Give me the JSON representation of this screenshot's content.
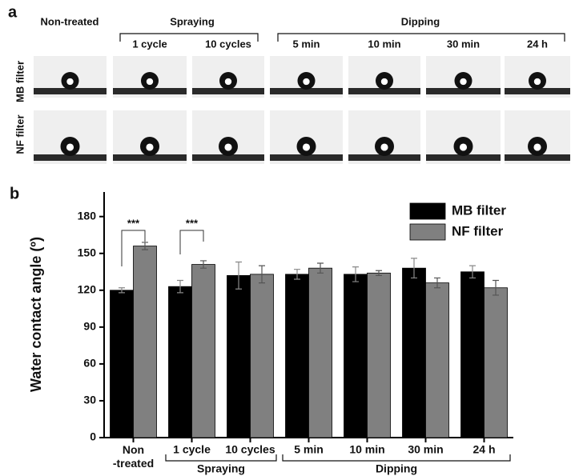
{
  "panel_a": {
    "label": "a",
    "first_column": "Non-treated",
    "groups": [
      "Spraying",
      "Dipping"
    ],
    "columns": [
      "1 cycle",
      "10 cycles",
      "5 min",
      "10 min",
      "30 min",
      "24 h"
    ],
    "rows": [
      "MB filter",
      "NF filter"
    ]
  },
  "chart_data": {
    "type": "bar",
    "panel_label": "b",
    "ylabel": "Water contact angle (º)",
    "categories": [
      "Non\n-treated",
      "1 cycle",
      "10 cycles",
      "5 min",
      "10 min",
      "30 min",
      "24 h"
    ],
    "groups": [
      "Spraying",
      "Dipping"
    ],
    "series": [
      {
        "name": "MB filter",
        "color": "#000000",
        "values": [
          120,
          123,
          132,
          133,
          133,
          138,
          135
        ],
        "errors": [
          2,
          5,
          11,
          4,
          6,
          8,
          5
        ]
      },
      {
        "name": "NF filter",
        "color": "#808080",
        "values": [
          156,
          141,
          133,
          138,
          134,
          126,
          122
        ],
        "errors": [
          3,
          3,
          7,
          4,
          2,
          4,
          6
        ]
      }
    ],
    "significance_labels": [
      "***",
      "***"
    ],
    "ylim": [
      0,
      200
    ],
    "yticks": [
      0,
      30,
      60,
      90,
      120,
      150,
      180
    ],
    "legend": "upper right"
  }
}
